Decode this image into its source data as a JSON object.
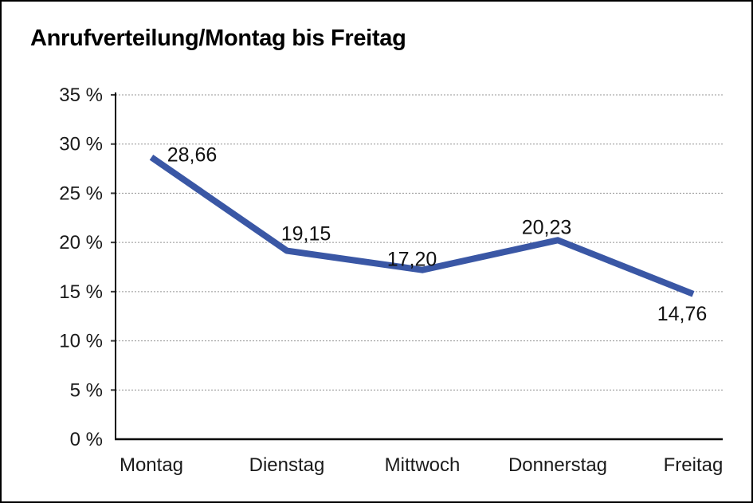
{
  "window": {
    "title": "Anrufverteilung/Montag bis Freitag"
  },
  "chart_data": {
    "type": "line",
    "title": "Anrufverteilung/Montag bis Freitag",
    "categories": [
      "Montag",
      "Dienstag",
      "Mittwoch",
      "Donnerstag",
      "Freitag"
    ],
    "values": [
      28.66,
      19.15,
      17.2,
      20.23,
      14.76
    ],
    "data_labels": [
      "28,66",
      "19,15",
      "17,20",
      "20,23",
      "14,76"
    ],
    "series_name": "Anrufverteilung",
    "xlabel": "",
    "ylabel": "",
    "ylim": [
      0,
      35
    ],
    "ytick_step": 5,
    "ytick_suffix": " %",
    "ytick_labels": [
      "0 %",
      "5 %",
      "10 %",
      "15 %",
      "20 %",
      "25 %",
      "30 %",
      "35 %"
    ],
    "grid": "horizontal-dotted",
    "legend_position": "none",
    "line_color": "#3A57A5"
  },
  "colors": {
    "line": "#3A57A5",
    "axis": "#000000",
    "tick": "#3A3A3A",
    "grid": "#949494",
    "text": "#1A1A1A",
    "data_label_text": "#111111",
    "background": "#FFFFFF",
    "frame_border": "#000000"
  }
}
